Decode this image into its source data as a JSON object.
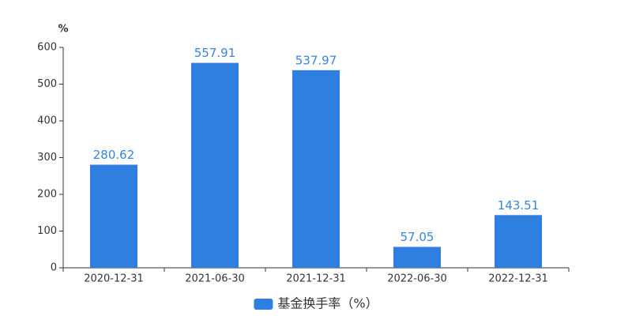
{
  "chart_data": {
    "type": "bar",
    "y_axis_label": "%",
    "categories": [
      "2020-12-31",
      "2021-06-30",
      "2021-12-31",
      "2022-06-30",
      "2022-12-31"
    ],
    "series": [
      {
        "name": "基金换手率（%）",
        "color": "#2e7fe0",
        "values": [
          280.62,
          557.91,
          537.97,
          57.05,
          143.51
        ]
      }
    ],
    "ylim": [
      0,
      600
    ],
    "yticks": [
      0,
      100,
      200,
      300,
      400,
      500,
      600
    ],
    "grid": false,
    "legend": "bottom"
  }
}
